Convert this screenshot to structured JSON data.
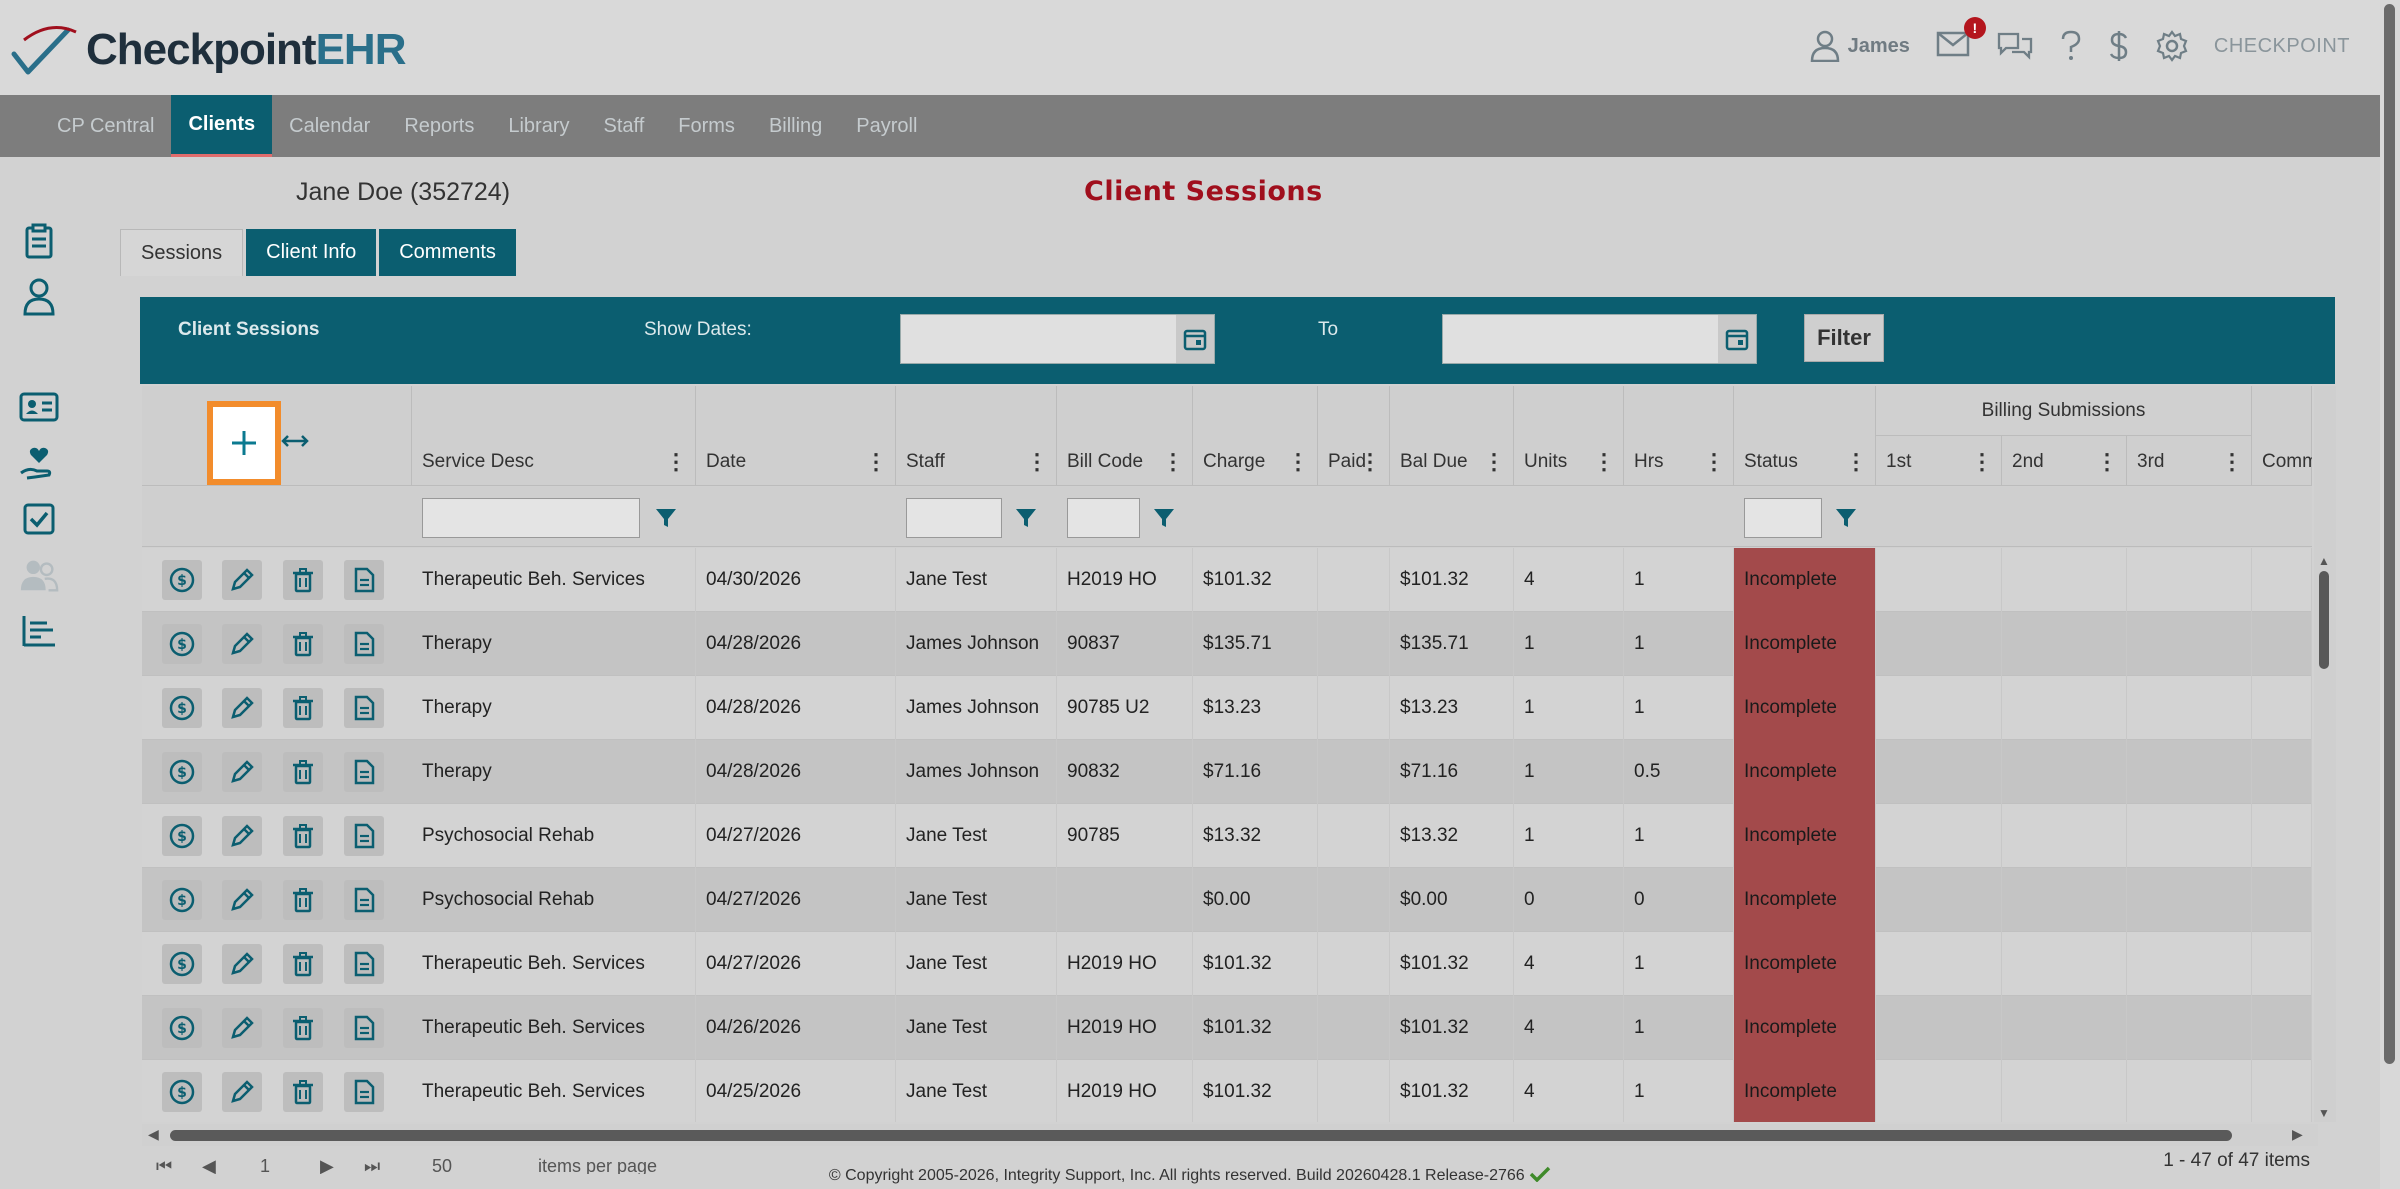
{
  "header": {
    "logo_main": "Checkpoint",
    "logo_accent": "EHR",
    "user_name": "James",
    "mail_badge": "!",
    "brand_right": "CHECKPOINT",
    "icons": [
      "user-icon",
      "mail-icon",
      "chat-icon",
      "help-icon",
      "dollar-icon",
      "gear-icon"
    ]
  },
  "nav": {
    "items": [
      {
        "label": "CP Central"
      },
      {
        "label": "Clients",
        "active": true
      },
      {
        "label": "Calendar"
      },
      {
        "label": "Reports"
      },
      {
        "label": "Library"
      },
      {
        "label": "Staff"
      },
      {
        "label": "Forms"
      },
      {
        "label": "Billing"
      },
      {
        "label": "Payroll"
      }
    ]
  },
  "rail": [
    "clipboard-icon",
    "person-icon",
    "id-card-icon",
    "heart-hand-icon",
    "checkbox-icon",
    "group-icon",
    "bar-list-icon"
  ],
  "client": {
    "name": "Jane Doe (352724)"
  },
  "page_title": "Client Sessions",
  "tabs": [
    {
      "label": "Sessions",
      "active": true
    },
    {
      "label": "Client Info"
    },
    {
      "label": "Comments"
    }
  ],
  "filterbar": {
    "title": "Client Sessions",
    "show_dates_label": "Show Dates:",
    "to_label": "To",
    "from_value": "",
    "to_value": "",
    "filter_button": "Filter"
  },
  "grid": {
    "columns": [
      "Service Desc",
      "Date",
      "Staff",
      "Bill Code",
      "Charge",
      "Paid",
      "Bal Due",
      "Units",
      "Hrs",
      "Status",
      "1st",
      "2nd",
      "3rd",
      "Comm"
    ],
    "billing_group_label": "Billing Submissions",
    "rows": [
      {
        "service": "Therapeutic Beh. Services",
        "date": "04/30/2026",
        "staff": "Jane Test",
        "bill_code": "H2019 HO",
        "charge": "$101.32",
        "paid": "",
        "bal_due": "$101.32",
        "units": "4",
        "hrs": "1",
        "status": "Incomplete"
      },
      {
        "service": "Therapy",
        "date": "04/28/2026",
        "staff": "James Johnson",
        "bill_code": "90837",
        "charge": "$135.71",
        "paid": "",
        "bal_due": "$135.71",
        "units": "1",
        "hrs": "1",
        "status": "Incomplete"
      },
      {
        "service": "Therapy",
        "date": "04/28/2026",
        "staff": "James Johnson",
        "bill_code": "90785 U2",
        "charge": "$13.23",
        "paid": "",
        "bal_due": "$13.23",
        "units": "1",
        "hrs": "1",
        "status": "Incomplete"
      },
      {
        "service": "Therapy",
        "date": "04/28/2026",
        "staff": "James Johnson",
        "bill_code": "90832",
        "charge": "$71.16",
        "paid": "",
        "bal_due": "$71.16",
        "units": "1",
        "hrs": "0.5",
        "status": "Incomplete"
      },
      {
        "service": "Psychosocial Rehab",
        "date": "04/27/2026",
        "staff": "Jane Test",
        "bill_code": "90785",
        "charge": "$13.32",
        "paid": "",
        "bal_due": "$13.32",
        "units": "1",
        "hrs": "1",
        "status": "Incomplete"
      },
      {
        "service": "Psychosocial Rehab",
        "date": "04/27/2026",
        "staff": "Jane Test",
        "bill_code": "",
        "charge": "$0.00",
        "paid": "",
        "bal_due": "$0.00",
        "units": "0",
        "hrs": "0",
        "status": "Incomplete"
      },
      {
        "service": "Therapeutic Beh. Services",
        "date": "04/27/2026",
        "staff": "Jane Test",
        "bill_code": "H2019 HO",
        "charge": "$101.32",
        "paid": "",
        "bal_due": "$101.32",
        "units": "4",
        "hrs": "1",
        "status": "Incomplete"
      },
      {
        "service": "Therapeutic Beh. Services",
        "date": "04/26/2026",
        "staff": "Jane Test",
        "bill_code": "H2019 HO",
        "charge": "$101.32",
        "paid": "",
        "bal_due": "$101.32",
        "units": "4",
        "hrs": "1",
        "status": "Incomplete"
      },
      {
        "service": "Therapeutic Beh. Services",
        "date": "04/25/2026",
        "staff": "Jane Test",
        "bill_code": "H2019 HO",
        "charge": "$101.32",
        "paid": "",
        "bal_due": "$101.32",
        "units": "4",
        "hrs": "1",
        "status": "Incomplete"
      }
    ],
    "row_actions": [
      "dollar-circle-icon",
      "pencil-icon",
      "trash-icon",
      "document-icon"
    ]
  },
  "pager": {
    "page_size": "50",
    "page_size_label": "items per page",
    "current_page": "1",
    "items_count": "1 - 47 of 47 items"
  },
  "footer": {
    "copyright": "© Copyright 2005-2026, Integrity Support, Inc. All rights reserved. Build 20260428.1 Release-2766"
  },
  "colors": {
    "teal": "#0b5e70",
    "title_red": "#a00f1d",
    "status_red": "#a34a4b",
    "highlight_orange": "#f28c2c"
  }
}
